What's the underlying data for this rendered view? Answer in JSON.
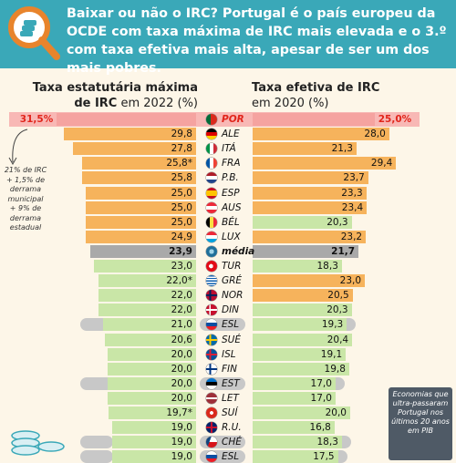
{
  "headline": "Baixar ou não o IRC? Portugal é o país europeu da OCDE com taxa máxima de IRC mais elevada e o 3.º com taxa efetiva mais alta, apesar de ser um dos mais pobres.",
  "left_header": {
    "line1": "Taxa estatutária máxima",
    "line2_bold": "de IRC",
    "line2_rest": " em 2022 (%)"
  },
  "right_header": {
    "line1": "Taxa efetiva de IRC",
    "line2": "em 2020 (%)"
  },
  "note": "21% de IRC + 1,5% de derrama municipal + 9% de derrama estadual",
  "box_note": "Economias que ultra-passaram Portugal nos últimos 20 anos em PIB",
  "colors": {
    "header": "#3aa8b8",
    "orange": "#f6b35c",
    "green": "#c9e6a7",
    "portugal": "#f5a3a0",
    "average": "#a9a9a9",
    "pill": "#c8c8c8",
    "red_text": "#e1251b"
  },
  "chart_data": {
    "type": "bar",
    "categories": [
      "POR",
      "ALE",
      "ITÁ",
      "FRA",
      "P.B.",
      "ESP",
      "AUS",
      "BÉL",
      "LUX",
      "média",
      "TUR",
      "GRÉ",
      "NOR",
      "DIN",
      "ESL",
      "SUÉ",
      "ISL",
      "FIN",
      "EST",
      "LET",
      "SUÍ",
      "R.U.",
      "CHÉ",
      "ESL"
    ],
    "series": [
      {
        "name": "Taxa estatutária máxima de IRC em 2022 (%)",
        "values": [
          31.5,
          29.8,
          27.8,
          25.8,
          25.8,
          25.0,
          25.0,
          25.0,
          24.9,
          23.9,
          23.0,
          22.0,
          22.0,
          22.0,
          21.0,
          20.6,
          20.0,
          20.0,
          20.0,
          20.0,
          19.7,
          19.0,
          19.0,
          19.0
        ],
        "labels": [
          "31,5%",
          "29,8",
          "27,8",
          "25,8*",
          "25,8",
          "25,0",
          "25,0",
          "25,0",
          "24,9",
          "23,9",
          "23,0",
          "22,0*",
          "22,0",
          "22,0",
          "21,0",
          "20,6",
          "20,0",
          "20,0",
          "20,0",
          "20,0",
          "19,7*",
          "19,0",
          "19,0",
          "19,0"
        ]
      },
      {
        "name": "Taxa efetiva de IRC em 2020 (%)",
        "values": [
          25.0,
          28.0,
          21.3,
          29.4,
          23.7,
          23.3,
          23.4,
          20.3,
          23.2,
          21.7,
          18.3,
          23.0,
          20.5,
          20.3,
          19.3,
          20.4,
          19.1,
          19.8,
          17.0,
          17.0,
          20.0,
          16.8,
          18.3,
          17.5
        ],
        "labels": [
          "25,0%",
          "28,0",
          "21,3",
          "29,4",
          "23,7",
          "23,3",
          "23,4",
          "20,3",
          "23,2",
          "21,7",
          "18,3",
          "23,0",
          "20,5",
          "20,3",
          "19,3",
          "20,4",
          "19,1",
          "19,8",
          "17,0",
          "17,0",
          "20,0",
          "16,8",
          "18,3",
          "17,5"
        ]
      }
    ],
    "highlight": [
      "POR",
      "EST",
      "CHÉ",
      "ESL"
    ],
    "grid": false
  }
}
